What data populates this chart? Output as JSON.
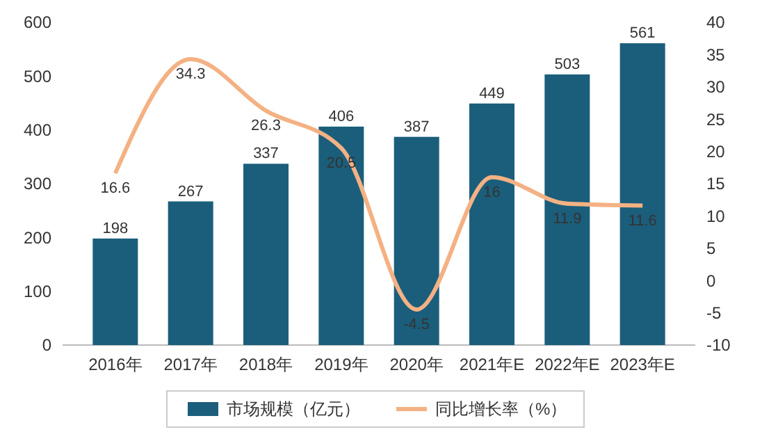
{
  "chart_data": {
    "type": "bar",
    "categories": [
      "2016年",
      "2017年",
      "2018年",
      "2019年",
      "2020年",
      "2021年E",
      "2022年E",
      "2023年E"
    ],
    "series": [
      {
        "name": "市场规模（亿元）",
        "color": "#1b5e7b",
        "values": [
          198,
          267,
          337,
          406,
          387,
          449,
          503,
          561
        ]
      },
      {
        "name": "同比增长率（%）",
        "type": "line",
        "axis": "y2",
        "color": "#f4b183",
        "values": [
          16.6,
          34.3,
          26.3,
          20.5,
          -4.5,
          16,
          11.9,
          11.6
        ]
      }
    ],
    "ylim": [
      0,
      600
    ],
    "yticks": [
      0,
      100,
      200,
      300,
      400,
      500,
      600
    ],
    "y2lim": [
      -10,
      40
    ],
    "y2ticks": [
      -10,
      -5,
      0,
      5,
      10,
      15,
      20,
      25,
      30,
      35,
      40
    ],
    "data_labels": true,
    "legend": "bottom",
    "grid": false,
    "marker": "none",
    "line_style": "solid"
  }
}
